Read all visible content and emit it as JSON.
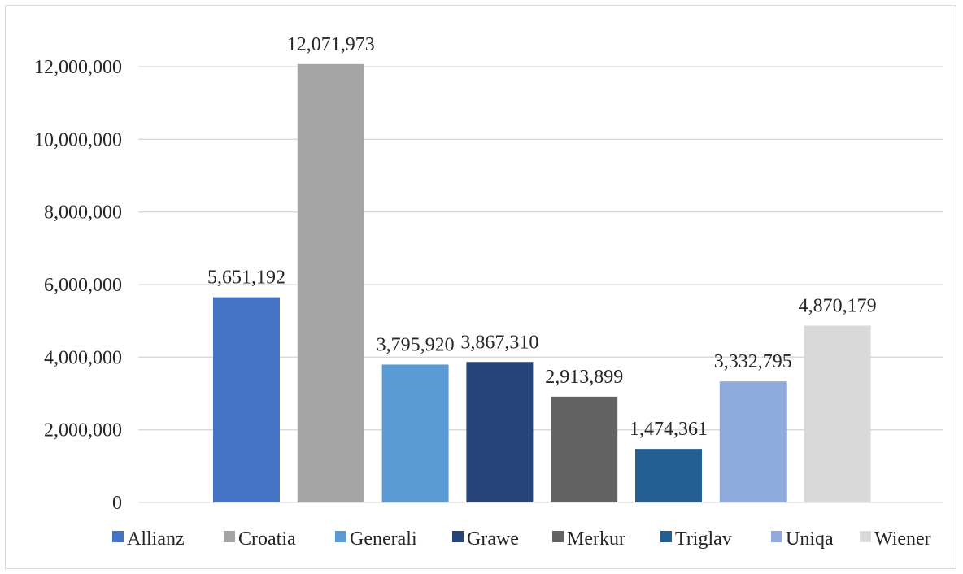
{
  "chart_data": {
    "type": "bar",
    "categories": [
      "Allianz",
      "Croatia",
      "Generali",
      "Grawe",
      "Merkur",
      "Triglav",
      "Uniqa",
      "Wiener"
    ],
    "series": [
      {
        "values": [
          5651192,
          12071973,
          3795920,
          3867310,
          2913899,
          1474361,
          3332795,
          4870179
        ],
        "data_labels": [
          "5,651,192",
          "12,071,973",
          "3,795,920",
          "3,867,310",
          "2,913,899",
          "1,474,361",
          "3,332,795",
          "4,870,179"
        ]
      }
    ],
    "colors": [
      "#4472c4",
      "#a5a5a5",
      "#5b9bd5",
      "#264478",
      "#636363",
      "#255e91",
      "#8faadc",
      "#d9d9d9"
    ],
    "ylim": [
      0,
      12000000
    ],
    "yticks": [
      0,
      2000000,
      4000000,
      6000000,
      8000000,
      10000000,
      12000000
    ],
    "ytick_labels": [
      "0",
      "2,000,000",
      "4,000,000",
      "6,000,000",
      "8,000,000",
      "10,000,000",
      "12,000,000"
    ],
    "grid": true,
    "legend": "bottom",
    "title": "",
    "xlabel": "",
    "ylabel": ""
  }
}
